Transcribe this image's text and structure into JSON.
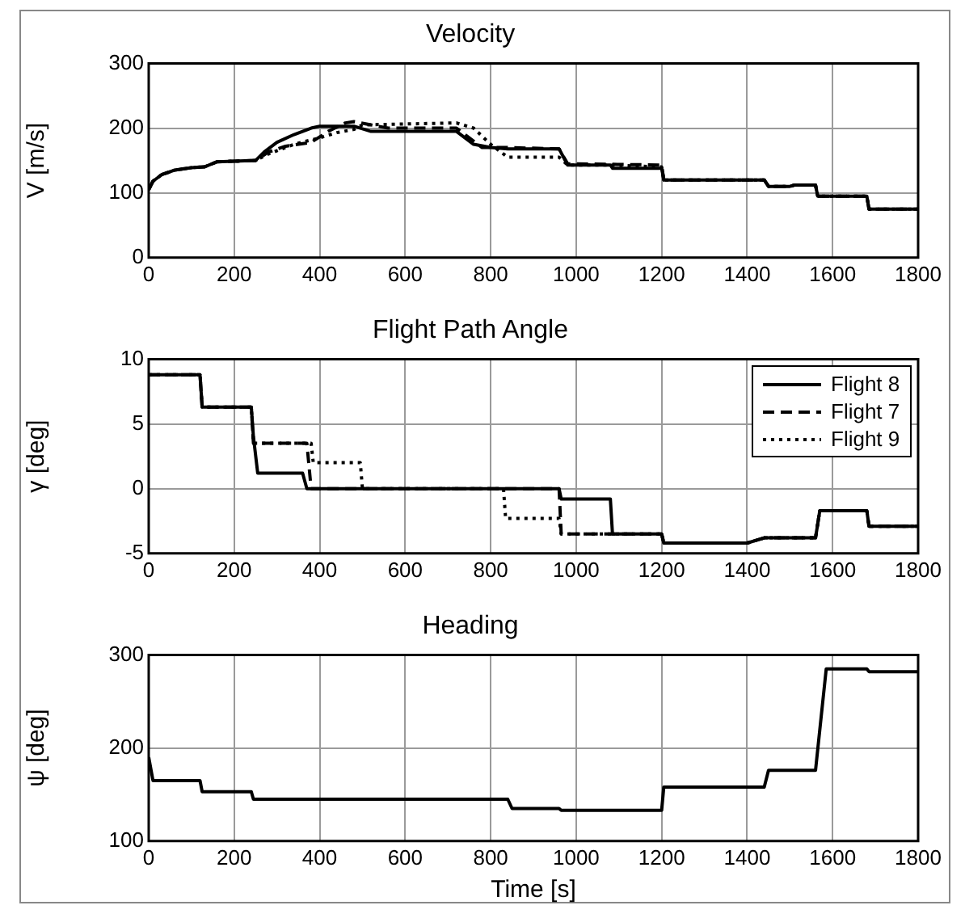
{
  "chart_data": [
    {
      "type": "line",
      "title": "Velocity",
      "ylabel": "V [m/s]",
      "xlim": [
        0,
        1800
      ],
      "xticks": [
        0,
        200,
        400,
        600,
        800,
        1000,
        1200,
        1400,
        1600,
        1800
      ],
      "ylim": [
        0,
        300
      ],
      "yticks": [
        0,
        100,
        200,
        300
      ],
      "grid": true,
      "legend": false,
      "series": [
        {
          "color": "#000000",
          "line_style": "solid",
          "x": [
            0,
            10,
            30,
            60,
            100,
            130,
            160,
            250,
            270,
            300,
            340,
            380,
            400,
            480,
            520,
            720,
            760,
            800,
            840,
            960,
            980,
            1080,
            1085,
            1200,
            1205,
            1440,
            1450,
            1500,
            1510,
            1560,
            1565,
            1680,
            1685,
            1800
          ],
          "values": [
            105,
            118,
            128,
            135,
            139,
            140,
            148,
            150,
            163,
            178,
            190,
            200,
            203,
            203,
            195,
            195,
            175,
            170,
            168,
            168,
            143,
            143,
            138,
            138,
            120,
            120,
            110,
            110,
            112,
            112,
            95,
            95,
            75,
            75
          ]
        },
        {
          "color": "#000000",
          "line_style": "dashed",
          "x": [
            0,
            10,
            30,
            60,
            100,
            130,
            160,
            250,
            280,
            320,
            380,
            420,
            460,
            480,
            520,
            560,
            720,
            760,
            780,
            840,
            960,
            980,
            1200,
            1205,
            1440,
            1450,
            1500,
            1510,
            1560,
            1565,
            1680,
            1685,
            1800
          ],
          "values": [
            105,
            118,
            128,
            135,
            139,
            140,
            148,
            150,
            163,
            172,
            178,
            195,
            208,
            210,
            205,
            200,
            200,
            180,
            170,
            170,
            168,
            145,
            143,
            120,
            120,
            110,
            110,
            112,
            112,
            95,
            95,
            75,
            75
          ]
        },
        {
          "color": "#000000",
          "line_style": "dotted",
          "x": [
            0,
            10,
            30,
            60,
            100,
            130,
            160,
            250,
            280,
            340,
            400,
            440,
            480,
            500,
            720,
            760,
            800,
            840,
            960,
            980,
            1080,
            1200,
            1205,
            1440,
            1450,
            1500,
            1510,
            1560,
            1565,
            1680,
            1685,
            1800
          ],
          "values": [
            105,
            118,
            128,
            135,
            139,
            140,
            148,
            150,
            160,
            175,
            185,
            193,
            198,
            205,
            208,
            200,
            175,
            155,
            155,
            143,
            143,
            140,
            120,
            120,
            110,
            110,
            112,
            112,
            95,
            95,
            75,
            75
          ]
        }
      ]
    },
    {
      "type": "line",
      "title": "Flight Path Angle",
      "ylabel": "γ [deg]",
      "xlim": [
        0,
        1800
      ],
      "xticks": [
        0,
        200,
        400,
        600,
        800,
        1000,
        1200,
        1400,
        1600,
        1800
      ],
      "ylim": [
        -5,
        10
      ],
      "yticks": [
        -5,
        0,
        5,
        10
      ],
      "grid": true,
      "legend": "top right",
      "series": [
        {
          "name": "Flight 8",
          "color": "#000000",
          "line_style": "solid",
          "x": [
            0,
            120,
            125,
            240,
            245,
            255,
            360,
            370,
            960,
            965,
            1080,
            1085,
            1200,
            1205,
            1400,
            1440,
            1560,
            1570,
            1680,
            1685,
            1800
          ],
          "values": [
            8.8,
            8.8,
            6.3,
            6.3,
            4,
            1.2,
            1.2,
            0,
            0,
            -0.8,
            -0.8,
            -3.5,
            -3.5,
            -4.2,
            -4.2,
            -3.8,
            -3.8,
            -1.7,
            -1.7,
            -2.9,
            -2.9
          ]
        },
        {
          "name": "Flight 7",
          "color": "#000000",
          "line_style": "dashed",
          "x": [
            0,
            120,
            125,
            240,
            245,
            370,
            380,
            960,
            965,
            1200,
            1205,
            1400,
            1440,
            1560,
            1570,
            1680,
            1685,
            1800
          ],
          "values": [
            8.8,
            8.8,
            6.3,
            6.3,
            3.5,
            3.5,
            0,
            0,
            -3.5,
            -3.5,
            -4.2,
            -4.2,
            -3.8,
            -3.8,
            -1.7,
            -1.7,
            -2.9,
            -2.9
          ]
        },
        {
          "name": "Flight 9",
          "color": "#000000",
          "line_style": "dotted",
          "x": [
            0,
            120,
            125,
            240,
            245,
            380,
            385,
            495,
            500,
            830,
            835,
            960,
            965,
            1200,
            1205,
            1400,
            1440,
            1560,
            1570,
            1680,
            1685,
            1800
          ],
          "values": [
            8.8,
            8.8,
            6.3,
            6.3,
            3.5,
            3.5,
            2,
            2,
            0,
            0,
            -2.3,
            -2.3,
            -3.5,
            -3.5,
            -4.2,
            -4.2,
            -3.8,
            -3.8,
            -1.7,
            -1.7,
            -2.9,
            -2.9
          ]
        }
      ]
    },
    {
      "type": "line",
      "title": "Heading",
      "xlabel": "Time [s]",
      "ylabel": "ψ [deg]",
      "xlim": [
        0,
        1800
      ],
      "xticks": [
        0,
        200,
        400,
        600,
        800,
        1000,
        1200,
        1400,
        1600,
        1800
      ],
      "ylim": [
        100,
        300
      ],
      "yticks": [
        100,
        200,
        300
      ],
      "grid": true,
      "legend": false,
      "series": [
        {
          "color": "#000000",
          "line_style": "solid",
          "x": [
            0,
            10,
            120,
            125,
            240,
            245,
            840,
            850,
            960,
            965,
            1200,
            1205,
            1440,
            1450,
            1560,
            1585,
            1680,
            1685,
            1800
          ],
          "values": [
            190,
            165,
            165,
            153,
            153,
            145,
            145,
            135,
            135,
            133,
            133,
            158,
            158,
            176,
            176,
            285,
            285,
            282,
            282
          ]
        }
      ]
    }
  ]
}
